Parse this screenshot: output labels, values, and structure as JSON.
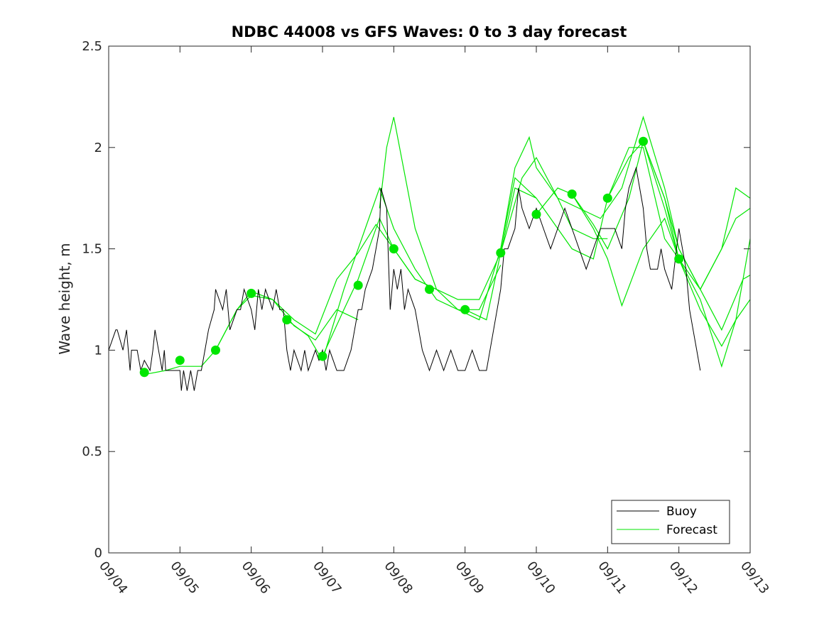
{
  "chart_data": {
    "type": "line",
    "title": "NDBC 44008 vs GFS Waves: 0 to 3 day forecast",
    "xlabel": "",
    "ylabel": "Wave height, m",
    "xlim": [
      0,
      9
    ],
    "ylim": [
      0,
      2.5
    ],
    "x_tick_labels": [
      "09/04",
      "09/05",
      "09/06",
      "09/07",
      "09/08",
      "09/09",
      "09/10",
      "09/11",
      "09/12",
      "09/13"
    ],
    "y_ticks": [
      0,
      0.5,
      1,
      1.5,
      2,
      2.5
    ],
    "y_tick_labels": [
      "0",
      "0.5",
      "1",
      "1.5",
      "2",
      "2.5"
    ],
    "grid": false,
    "legend": {
      "position": "bottom-right",
      "entries": [
        "Buoy",
        "Forecast"
      ]
    },
    "colors": {
      "buoy": "#000000",
      "forecast": "#00e600",
      "axes": "#262626"
    },
    "series": [
      {
        "name": "Buoy",
        "x": [
          0,
          0.1,
          0.12,
          0.2,
          0.25,
          0.3,
          0.32,
          0.4,
          0.45,
          0.5,
          0.58,
          0.62,
          0.65,
          0.7,
          0.75,
          0.78,
          0.8,
          0.85,
          0.9,
          1.0,
          1.02,
          1.05,
          1.1,
          1.15,
          1.2,
          1.25,
          1.3,
          1.35,
          1.4,
          1.48,
          1.5,
          1.6,
          1.65,
          1.7,
          1.8,
          1.85,
          1.9,
          2.0,
          2.05,
          2.1,
          2.15,
          2.2,
          2.3,
          2.35,
          2.4,
          2.45,
          2.5,
          2.55,
          2.6,
          2.7,
          2.75,
          2.8,
          2.9,
          2.95,
          3.0,
          3.05,
          3.1,
          3.2,
          3.3,
          3.4,
          3.5,
          3.55,
          3.6,
          3.7,
          3.75,
          3.8,
          3.82,
          3.9,
          3.95,
          4.0,
          4.05,
          4.1,
          4.15,
          4.2,
          4.3,
          4.4,
          4.5,
          4.6,
          4.7,
          4.8,
          4.9,
          5.0,
          5.1,
          5.2,
          5.3,
          5.35,
          5.45,
          5.5,
          5.55,
          5.6,
          5.7,
          5.75,
          5.8,
          5.9,
          6.0,
          6.1,
          6.2,
          6.3,
          6.4,
          6.5,
          6.6,
          6.7,
          6.8,
          6.9,
          7.0,
          7.1,
          7.2,
          7.25,
          7.3,
          7.4,
          7.5,
          7.55,
          7.6,
          7.7,
          7.75,
          7.8,
          7.9,
          8.0,
          8.1,
          8.15,
          8.2,
          8.25,
          8.3
        ],
        "values": [
          1.0,
          1.1,
          1.1,
          1.0,
          1.1,
          0.9,
          1.0,
          1.0,
          0.9,
          0.95,
          0.9,
          1.0,
          1.1,
          1.0,
          0.9,
          1.0,
          0.9,
          0.9,
          0.9,
          0.9,
          0.8,
          0.9,
          0.8,
          0.9,
          0.8,
          0.9,
          0.9,
          1.0,
          1.1,
          1.2,
          1.3,
          1.2,
          1.3,
          1.1,
          1.2,
          1.2,
          1.3,
          1.2,
          1.1,
          1.3,
          1.2,
          1.3,
          1.2,
          1.3,
          1.2,
          1.2,
          1.0,
          0.9,
          1.0,
          0.9,
          1.0,
          0.9,
          1.0,
          0.95,
          1.0,
          0.9,
          1.0,
          0.9,
          0.9,
          1.0,
          1.2,
          1.2,
          1.3,
          1.4,
          1.5,
          1.6,
          1.8,
          1.7,
          1.2,
          1.4,
          1.3,
          1.4,
          1.2,
          1.3,
          1.2,
          1.0,
          0.9,
          1.0,
          0.9,
          1.0,
          0.9,
          0.9,
          1.0,
          0.9,
          0.9,
          1.0,
          1.2,
          1.3,
          1.5,
          1.5,
          1.6,
          1.8,
          1.7,
          1.6,
          1.7,
          1.6,
          1.5,
          1.6,
          1.7,
          1.6,
          1.5,
          1.4,
          1.5,
          1.6,
          1.6,
          1.6,
          1.5,
          1.7,
          1.8,
          1.9,
          1.7,
          1.5,
          1.4,
          1.4,
          1.5,
          1.4,
          1.3,
          1.6,
          1.4,
          1.2,
          1.1,
          1.0,
          0.9
        ]
      },
      {
        "name": "Forecast",
        "x": [
          0.5,
          0.8,
          1.0,
          1.3,
          1.5,
          1.8,
          2.0,
          2.3,
          2.6,
          2.9,
          3.2,
          3.5
        ],
        "values": [
          0.88,
          0.9,
          0.92,
          0.92,
          1.0,
          1.2,
          1.27,
          1.25,
          1.12,
          1.05,
          1.2,
          1.15
        ]
      },
      {
        "name": "Forecast",
        "x": [
          1.5,
          1.8,
          2.0,
          2.3,
          2.6,
          2.9,
          3.2,
          3.5,
          3.75,
          4.0,
          4.3,
          4.6
        ],
        "values": [
          1.0,
          1.2,
          1.29,
          1.25,
          1.15,
          1.08,
          1.35,
          1.48,
          1.62,
          1.5,
          1.35,
          1.3
        ]
      },
      {
        "name": "Forecast",
        "x": [
          2.5,
          2.8,
          3.0,
          3.3,
          3.6,
          3.8,
          4.0,
          4.3,
          4.6,
          4.9,
          5.2,
          5.5
        ],
        "values": [
          1.15,
          1.07,
          0.95,
          1.3,
          1.6,
          1.8,
          1.6,
          1.4,
          1.25,
          1.2,
          1.2,
          1.42
        ]
      },
      {
        "name": "Forecast",
        "x": [
          3.0,
          3.3,
          3.5,
          3.7,
          3.8,
          4.0,
          4.3,
          4.6,
          4.9,
          5.2,
          5.5,
          5.7,
          6.0
        ],
        "values": [
          0.97,
          1.2,
          1.35,
          1.55,
          1.65,
          1.5,
          1.35,
          1.3,
          1.2,
          1.15,
          1.5,
          1.85,
          1.75
        ]
      },
      {
        "name": "Forecast",
        "x": [
          3.8,
          3.9,
          4.0,
          4.3,
          4.6,
          4.9,
          5.2,
          5.5,
          5.8,
          6.0,
          6.3,
          6.5,
          6.8,
          7.0
        ],
        "values": [
          1.7,
          2.0,
          2.15,
          1.6,
          1.3,
          1.25,
          1.25,
          1.48,
          1.85,
          1.95,
          1.75,
          1.6,
          1.55,
          1.55
        ]
      },
      {
        "name": "Forecast",
        "x": [
          5.0,
          5.3,
          5.5,
          5.7,
          6.0,
          6.3,
          6.5,
          6.8,
          7.0,
          7.3,
          7.5,
          7.8,
          8.0
        ],
        "values": [
          1.2,
          1.15,
          1.48,
          1.8,
          1.75,
          1.6,
          1.5,
          1.45,
          1.75,
          2.0,
          2.0,
          1.55,
          1.45
        ]
      },
      {
        "name": "Forecast",
        "x": [
          5.5,
          5.7,
          5.9,
          6.0,
          6.3,
          6.6,
          6.9,
          7.2,
          7.5,
          7.8,
          8.0,
          8.3,
          8.6,
          8.8,
          9.0
        ],
        "values": [
          1.5,
          1.9,
          2.05,
          1.9,
          1.75,
          1.7,
          1.65,
          1.8,
          2.15,
          1.8,
          1.5,
          1.3,
          1.5,
          1.8,
          1.75
        ]
      },
      {
        "name": "Forecast",
        "x": [
          6.0,
          6.3,
          6.5,
          6.8,
          7.0,
          7.3,
          7.5,
          7.8,
          8.0,
          8.3,
          8.6,
          8.9,
          9.0
        ],
        "values": [
          1.67,
          1.8,
          1.77,
          1.62,
          1.5,
          1.75,
          2.03,
          1.75,
          1.5,
          1.3,
          1.1,
          1.35,
          1.37
        ]
      },
      {
        "name": "Forecast",
        "x": [
          6.5,
          6.8,
          7.0,
          7.2,
          7.5,
          7.8,
          8.0,
          8.3,
          8.6,
          8.8,
          9.0
        ],
        "values": [
          1.77,
          1.6,
          1.45,
          1.22,
          1.5,
          1.65,
          1.45,
          1.2,
          1.02,
          1.15,
          1.25
        ]
      },
      {
        "name": "Forecast",
        "x": [
          7.0,
          7.3,
          7.5,
          7.8,
          8.0,
          8.3,
          8.6,
          8.8,
          9.0
        ],
        "values": [
          1.75,
          1.95,
          2.03,
          1.7,
          1.45,
          1.25,
          0.92,
          1.15,
          1.55
        ]
      },
      {
        "name": "Forecast",
        "x": [
          7.5,
          7.8,
          8.0,
          8.3,
          8.6,
          8.8,
          9.0
        ],
        "values": [
          2.03,
          1.75,
          1.45,
          1.3,
          1.5,
          1.65,
          1.7
        ]
      }
    ],
    "forecast_markers": {
      "x": [
        0.5,
        1.0,
        1.5,
        2.0,
        2.5,
        3.0,
        3.5,
        4.0,
        4.5,
        5.0,
        5.5,
        6.0,
        6.5,
        7.0,
        7.5,
        8.0
      ],
      "values": [
        0.89,
        0.95,
        1.0,
        1.28,
        1.15,
        0.97,
        1.32,
        1.5,
        1.3,
        1.2,
        1.48,
        1.67,
        1.77,
        1.75,
        2.03,
        1.45
      ]
    }
  }
}
